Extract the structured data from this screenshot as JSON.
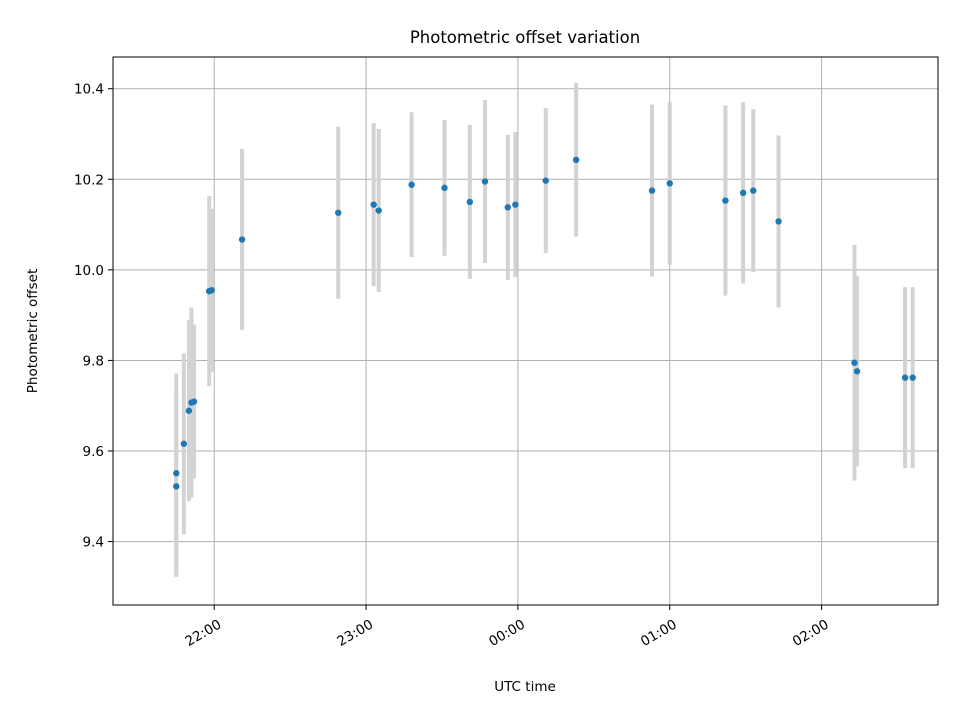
{
  "chart_data": {
    "type": "scatter",
    "title": "Photometric offset variation",
    "xlabel": "UTC time",
    "ylabel": "Photometric offset",
    "xlim": [
      "21:20",
      "02:46"
    ],
    "ylim": [
      9.26,
      10.47
    ],
    "x_ticks": [
      "22:00",
      "23:00",
      "00:00",
      "01:00",
      "02:00"
    ],
    "y_ticks": [
      "9.4",
      "9.6",
      "9.8",
      "10.0",
      "10.2",
      "10.4"
    ],
    "grid": true,
    "colors": {
      "point": "#1f77b4",
      "errorbar": "#d3d3d3",
      "grid": "#b0b0b0"
    },
    "points": [
      {
        "x": "21:45",
        "y": 9.522,
        "yerr": 0.2
      },
      {
        "x": "21:45",
        "y": 9.551,
        "yerr": 0.22
      },
      {
        "x": "21:48",
        "y": 9.616,
        "yerr": 0.2
      },
      {
        "x": "21:50",
        "y": 9.689,
        "yerr": 0.2
      },
      {
        "x": "21:51",
        "y": 9.707,
        "yerr": 0.21
      },
      {
        "x": "21:52",
        "y": 9.709,
        "yerr": 0.17
      },
      {
        "x": "21:58",
        "y": 9.953,
        "yerr": 0.21
      },
      {
        "x": "21:59",
        "y": 9.955,
        "yerr": 0.18
      },
      {
        "x": "22:11",
        "y": 10.067,
        "yerr": 0.2
      },
      {
        "x": "22:49",
        "y": 10.126,
        "yerr": 0.19
      },
      {
        "x": "23:03",
        "y": 10.144,
        "yerr": 0.18
      },
      {
        "x": "23:05",
        "y": 10.131,
        "yerr": 0.18
      },
      {
        "x": "23:18",
        "y": 10.188,
        "yerr": 0.16
      },
      {
        "x": "23:31",
        "y": 10.181,
        "yerr": 0.15
      },
      {
        "x": "23:41",
        "y": 10.15,
        "yerr": 0.17
      },
      {
        "x": "23:47",
        "y": 10.195,
        "yerr": 0.18
      },
      {
        "x": "23:56",
        "y": 10.138,
        "yerr": 0.16
      },
      {
        "x": "23:59",
        "y": 10.144,
        "yerr": 0.16
      },
      {
        "x": "00:11",
        "y": 10.197,
        "yerr": 0.16
      },
      {
        "x": "00:23",
        "y": 10.243,
        "yerr": 0.17
      },
      {
        "x": "00:53",
        "y": 10.175,
        "yerr": 0.19
      },
      {
        "x": "01:00",
        "y": 10.191,
        "yerr": 0.18
      },
      {
        "x": "01:22",
        "y": 10.153,
        "yerr": 0.21
      },
      {
        "x": "01:29",
        "y": 10.17,
        "yerr": 0.2
      },
      {
        "x": "01:33",
        "y": 10.175,
        "yerr": 0.18
      },
      {
        "x": "01:43",
        "y": 10.107,
        "yerr": 0.19
      },
      {
        "x": "02:13",
        "y": 9.795,
        "yerr": 0.26
      },
      {
        "x": "02:14",
        "y": 9.776,
        "yerr": 0.21
      },
      {
        "x": "02:33",
        "y": 9.762,
        "yerr": 0.2
      },
      {
        "x": "02:36",
        "y": 9.762,
        "yerr": 0.2
      }
    ]
  }
}
